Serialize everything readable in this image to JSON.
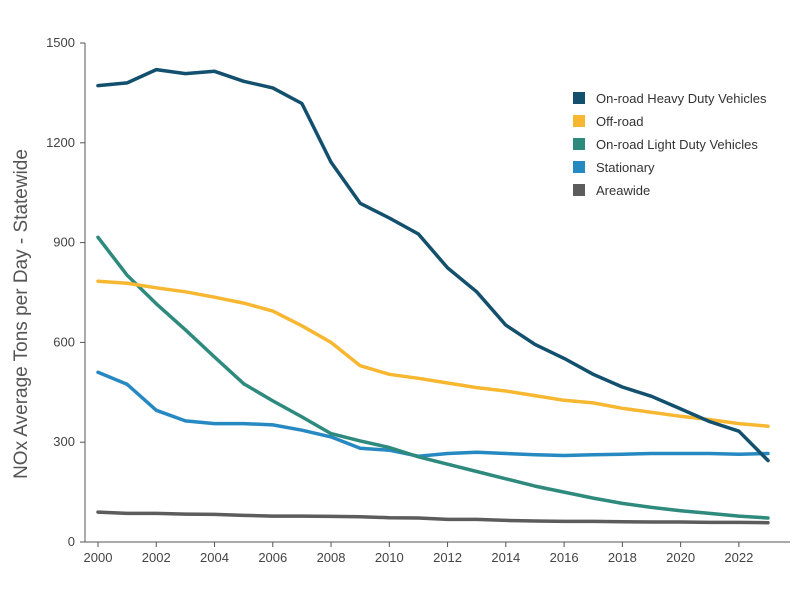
{
  "chart_data": {
    "type": "line",
    "title": "",
    "xlabel": "",
    "ylabel": "NOx Average Tons per Day - Statewide",
    "xlim": [
      2000,
      2023
    ],
    "ylim": [
      0,
      1500
    ],
    "x_ticks": [
      "2000",
      "2002",
      "2004",
      "2006",
      "2008",
      "2010",
      "2012",
      "2014",
      "2016",
      "2018",
      "2020",
      "2022"
    ],
    "y_ticks": [
      "0",
      "300",
      "600",
      "900",
      "1200",
      "1500"
    ],
    "grid": false,
    "legend_position": "top-right",
    "x": [
      2000,
      2001,
      2002,
      2003,
      2004,
      2005,
      2006,
      2007,
      2008,
      2009,
      2010,
      2011,
      2012,
      2013,
      2014,
      2015,
      2016,
      2017,
      2018,
      2019,
      2020,
      2021,
      2022,
      2023
    ],
    "series": [
      {
        "name": "On-road Heavy Duty Vehicles",
        "color": "#12506e",
        "values": [
          1372,
          1380,
          1420,
          1408,
          1415,
          1385,
          1365,
          1318,
          1142,
          1018,
          974,
          926,
          824,
          752,
          652,
          594,
          552,
          504,
          466,
          438,
          400,
          362,
          333,
          245
        ]
      },
      {
        "name": "Off-road",
        "color": "#f7b731",
        "values": [
          784,
          778,
          764,
          752,
          736,
          718,
          694,
          650,
          600,
          530,
          504,
          492,
          478,
          464,
          454,
          440,
          426,
          418,
          402,
          390,
          378,
          368,
          356,
          348
        ]
      },
      {
        "name": "On-road Light Duty Vehicles",
        "color": "#2f8a7e",
        "values": [
          916,
          802,
          716,
          638,
          556,
          476,
          424,
          376,
          326,
          304,
          284,
          256,
          234,
          212,
          190,
          168,
          150,
          132,
          116,
          104,
          94,
          86,
          78,
          72
        ]
      },
      {
        "name": "Stationary",
        "color": "#2789c1",
        "values": [
          510,
          474,
          396,
          364,
          356,
          356,
          352,
          336,
          316,
          282,
          276,
          258,
          266,
          270,
          266,
          262,
          260,
          262,
          264,
          266,
          266,
          266,
          264,
          266
        ]
      },
      {
        "name": "Areawide",
        "color": "#5c5c5c",
        "values": [
          90,
          86,
          86,
          84,
          83,
          80,
          78,
          78,
          77,
          76,
          73,
          72,
          68,
          68,
          65,
          63,
          62,
          62,
          61,
          60,
          60,
          59,
          59,
          58
        ]
      }
    ]
  }
}
